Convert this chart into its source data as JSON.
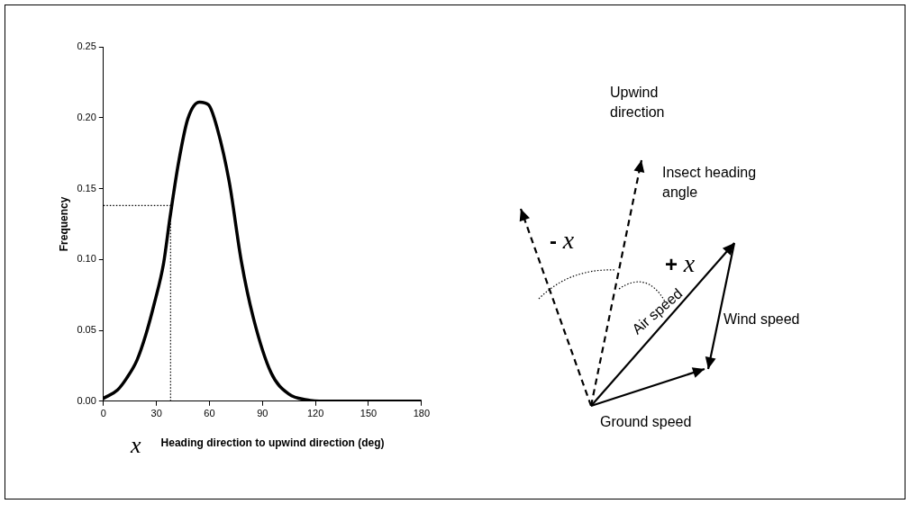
{
  "chart_data": {
    "type": "line",
    "xlabel": "x Heading direction to upwind direction (deg)",
    "ylabel": "Frequency",
    "series": [
      {
        "color": "#000000",
        "x": [
          0,
          8,
          13,
          19,
          24,
          29,
          34,
          37.6,
          42.6,
          47.7,
          54.4,
          59.5,
          64.5,
          71.3,
          78,
          84.8,
          94.9,
          105,
          115,
          125,
          150,
          180
        ],
        "values": [
          0.002,
          0.008,
          0.016,
          0.029,
          0.047,
          0.07,
          0.097,
          0.129,
          0.169,
          0.199,
          0.211,
          0.209,
          0.192,
          0.154,
          0.099,
          0.059,
          0.02,
          0.005,
          0.001,
          0,
          0,
          0
        ]
      }
    ],
    "xlim": [
      0,
      180
    ],
    "xticks": [
      0,
      30,
      60,
      90,
      120,
      150,
      180
    ],
    "ylim": [
      0,
      0.25
    ],
    "yticks": [
      {
        "value": 0,
        "label": "0.00"
      },
      {
        "value": 0.05,
        "label": "0.05"
      },
      {
        "value": 0.1,
        "label": "0.10"
      },
      {
        "value": 0.15,
        "label": "0.15"
      },
      {
        "value": 0.2,
        "label": "0.20"
      },
      {
        "value": 0.25,
        "label": "0.25"
      }
    ],
    "marker": "none",
    "line_style": "solid",
    "ref_lines": [
      {
        "axis": "x",
        "value": 38,
        "line_style": "dotted",
        "color": "#000000"
      },
      {
        "axis": "y",
        "value": 0.138,
        "line_style": "dotted",
        "color": "#000000"
      }
    ],
    "annotations": [
      "Upwind direction",
      "Insect heading angle",
      "- x",
      "+ x",
      "Air speed",
      "Wind speed",
      "Ground speed"
    ]
  }
}
